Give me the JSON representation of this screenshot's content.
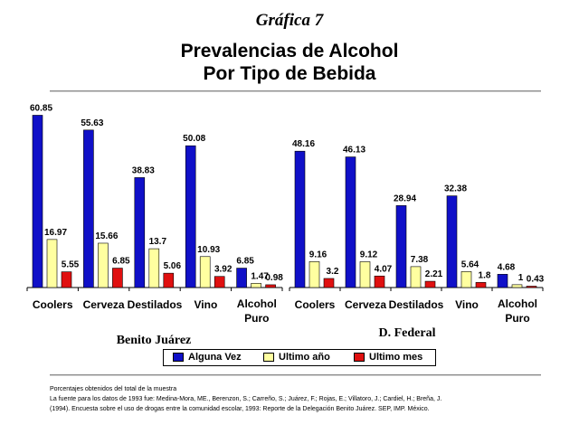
{
  "header": {
    "figure_label": "Gráfica 7",
    "title_line1": "Prevalencias de Alcohol",
    "title_line2": "Por Tipo de Bebida"
  },
  "legend": {
    "items": [
      {
        "label": "Alguna Vez",
        "color": "#1010c8"
      },
      {
        "label": "Ultimo año",
        "color": "#ffffa0"
      },
      {
        "label": "Ultimo mes",
        "color": "#e01010"
      }
    ]
  },
  "notes": {
    "line1": "Porcentajes obtenidos del total de la muestra",
    "line2": "La fuente para los datos de 1993 fue: Medina-Mora, ME., Berenzon, S.; Carreño, S.; Juárez, F.; Rojas, E.; Villatoro, J.; Cardiel, H.; Breña, J.",
    "line3": "(1994). Encuesta sobre el uso de drogas entre la comunidad escolar, 1993: Reporte de la Delegación Benito Juárez. SEP, IMP. México."
  },
  "chart_data": [
    {
      "type": "bar",
      "group_label": "Benito Juárez",
      "categories": [
        "Coolers",
        "Cerveza",
        "Destilados",
        "Vino",
        "Alcohol Puro"
      ],
      "series": [
        {
          "name": "Alguna Vez",
          "values": [
            60.85,
            55.63,
            38.83,
            50.08,
            6.85
          ],
          "labels": [
            "60.85",
            "55.63",
            "38.83",
            "50.08",
            "6.85"
          ]
        },
        {
          "name": "Ultimo año",
          "values": [
            16.97,
            15.66,
            13.7,
            10.93,
            1.47
          ],
          "labels": [
            "16.97",
            "15.66",
            "13.7",
            "10.93",
            "1.47"
          ]
        },
        {
          "name": "Ultimo mes",
          "values": [
            5.55,
            6.85,
            5.06,
            3.92,
            0.98
          ],
          "labels": [
            "5.55",
            "6.85",
            "5.06",
            "3.92",
            "0.98"
          ]
        }
      ],
      "ylim": [
        0,
        61
      ]
    },
    {
      "type": "bar",
      "group_label": "D. Federal",
      "categories": [
        "Coolers",
        "Cerveza",
        "Destilados",
        "Vino",
        "Alcohol Puro"
      ],
      "series": [
        {
          "name": "Alguna Vez",
          "values": [
            48.16,
            46.13,
            28.94,
            32.38,
            4.68
          ],
          "labels": [
            "48.16",
            "46.13",
            "28.94",
            "32.38",
            "4.68"
          ]
        },
        {
          "name": "Ultimo año",
          "values": [
            9.16,
            9.12,
            7.38,
            5.64,
            1
          ],
          "labels": [
            "9.16",
            "9.12",
            "7.38",
            "5.64",
            "1"
          ]
        },
        {
          "name": "Ultimo mes",
          "values": [
            3.2,
            4.07,
            2.21,
            1.8,
            0.43
          ],
          "labels": [
            "3.2",
            "4.07",
            "2.21",
            "1.8",
            "0.43"
          ]
        }
      ],
      "ylim": [
        0,
        61
      ]
    }
  ]
}
